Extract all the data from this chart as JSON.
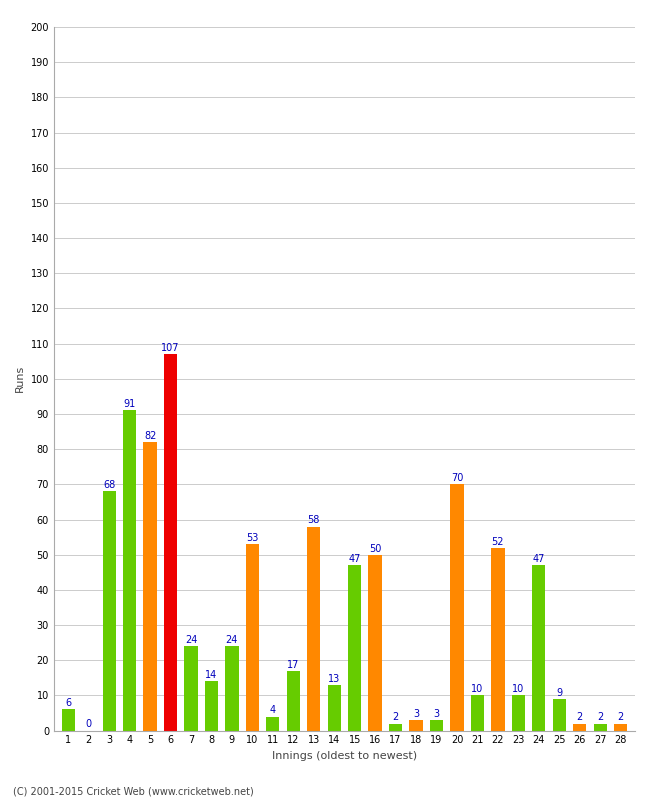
{
  "xlabel": "Innings (oldest to newest)",
  "ylabel": "Runs",
  "footer": "(C) 2001-2015 Cricket Web (www.cricketweb.net)",
  "green_color": "#66cc00",
  "orange_color": "#ff8800",
  "red_color": "#ee0000",
  "label_color": "#0000bb",
  "background_color": "#ffffff",
  "grid_color": "#cccccc",
  "ylim": [
    0,
    200
  ],
  "ytick_step": 10,
  "bars": [
    {
      "x": 1,
      "value": 6,
      "color": "green"
    },
    {
      "x": 2,
      "value": 0,
      "color": "orange"
    },
    {
      "x": 3,
      "value": 68,
      "color": "green"
    },
    {
      "x": 4,
      "value": 91,
      "color": "green"
    },
    {
      "x": 5,
      "value": 82,
      "color": "orange"
    },
    {
      "x": 6,
      "value": 107,
      "color": "red"
    },
    {
      "x": 7,
      "value": 24,
      "color": "green"
    },
    {
      "x": 8,
      "value": 14,
      "color": "green"
    },
    {
      "x": 9,
      "value": 24,
      "color": "green"
    },
    {
      "x": 10,
      "value": 53,
      "color": "orange"
    },
    {
      "x": 11,
      "value": 4,
      "color": "green"
    },
    {
      "x": 12,
      "value": 17,
      "color": "green"
    },
    {
      "x": 13,
      "value": 58,
      "color": "orange"
    },
    {
      "x": 14,
      "value": 13,
      "color": "green"
    },
    {
      "x": 15,
      "value": 47,
      "color": "green"
    },
    {
      "x": 16,
      "value": 50,
      "color": "orange"
    },
    {
      "x": 17,
      "value": 2,
      "color": "green"
    },
    {
      "x": 18,
      "value": 3,
      "color": "orange"
    },
    {
      "x": 19,
      "value": 3,
      "color": "green"
    },
    {
      "x": 20,
      "value": 70,
      "color": "orange"
    },
    {
      "x": 21,
      "value": 10,
      "color": "green"
    },
    {
      "x": 22,
      "value": 52,
      "color": "orange"
    },
    {
      "x": 23,
      "value": 10,
      "color": "green"
    },
    {
      "x": 24,
      "value": 47,
      "color": "green"
    },
    {
      "x": 25,
      "value": 9,
      "color": "green"
    },
    {
      "x": 26,
      "value": 2,
      "color": "orange"
    },
    {
      "x": 27,
      "value": 2,
      "color": "green"
    },
    {
      "x": 28,
      "value": 2,
      "color": "orange"
    }
  ],
  "bar_width": 0.65,
  "label_fontsize": 7,
  "axis_fontsize": 8,
  "tick_fontsize": 7,
  "figsize": [
    6.5,
    8.0
  ],
  "dpi": 100
}
